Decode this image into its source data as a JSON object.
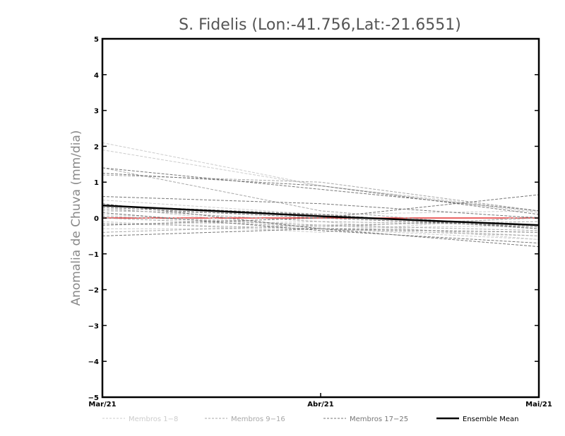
{
  "chart_data": {
    "type": "line",
    "title": "S. Fidelis (Lon:-41.756,Lat:-21.6551)",
    "ylabel": "Anomalia de Chuva (mm/dia)",
    "xlabel": "",
    "categories": [
      "Mar/21",
      "Abr/21",
      "Mai/21"
    ],
    "ylim": [
      -5,
      5
    ],
    "yticks": [
      -5,
      -4,
      -3,
      -2,
      -1,
      0,
      1,
      2,
      3,
      4,
      5
    ],
    "grid": false,
    "legend_position": "bottom",
    "groups": [
      {
        "name": "Membros 1-8",
        "color": "#cccccc",
        "dashed": true,
        "width": 1
      },
      {
        "name": "Membros 9-16",
        "color": "#a8a8a8",
        "dashed": true,
        "width": 1
      },
      {
        "name": "Membros 17-25",
        "color": "#777777",
        "dashed": true,
        "width": 1
      },
      {
        "name": "Ensemble Mean",
        "color": "#000000",
        "dashed": false,
        "width": 2.5
      }
    ],
    "zero_line_color": "#e03030",
    "series": [
      {
        "group": 0,
        "values": [
          2.1,
          0.9,
          0.2
        ]
      },
      {
        "group": 0,
        "values": [
          1.9,
          0.9,
          0.15
        ]
      },
      {
        "group": 0,
        "values": [
          0.3,
          -0.3,
          -0.6
        ]
      },
      {
        "group": 0,
        "values": [
          0.1,
          -0.2,
          -0.5
        ]
      },
      {
        "group": 0,
        "values": [
          -0.1,
          -0.4,
          0.05
        ]
      },
      {
        "group": 0,
        "values": [
          -0.3,
          -0.3,
          -0.2
        ]
      },
      {
        "group": 0,
        "values": [
          0.5,
          0.1,
          0.2
        ]
      },
      {
        "group": 0,
        "values": [
          -0.2,
          -0.1,
          -0.6
        ]
      },
      {
        "group": 1,
        "values": [
          1.4,
          0.2,
          -0.3
        ]
      },
      {
        "group": 1,
        "values": [
          1.2,
          1.0,
          0.2
        ]
      },
      {
        "group": 1,
        "values": [
          0.2,
          0.1,
          -0.3
        ]
      },
      {
        "group": 1,
        "values": [
          0.05,
          -0.2,
          -0.35
        ]
      },
      {
        "group": 1,
        "values": [
          -0.15,
          -0.3,
          -0.5
        ]
      },
      {
        "group": 1,
        "values": [
          -0.4,
          -0.2,
          -0.1
        ]
      },
      {
        "group": 1,
        "values": [
          0.25,
          -0.1,
          -0.2
        ]
      },
      {
        "group": 1,
        "values": [
          0.0,
          -0.25,
          0.0
        ]
      },
      {
        "group": 2,
        "values": [
          1.4,
          0.8,
          0.2
        ]
      },
      {
        "group": 2,
        "values": [
          1.25,
          0.9,
          0.1
        ]
      },
      {
        "group": 2,
        "values": [
          0.6,
          0.4,
          0.0
        ]
      },
      {
        "group": 2,
        "values": [
          0.3,
          0.0,
          0.65
        ]
      },
      {
        "group": 2,
        "values": [
          0.4,
          -0.3,
          -0.8
        ]
      },
      {
        "group": 2,
        "values": [
          0.15,
          -0.35,
          -0.7
        ]
      },
      {
        "group": 2,
        "values": [
          -0.2,
          0.0,
          -0.25
        ]
      },
      {
        "group": 2,
        "values": [
          -0.5,
          -0.3,
          -0.4
        ]
      },
      {
        "group": 2,
        "values": [
          0.35,
          0.1,
          -0.3
        ]
      },
      {
        "group": 3,
        "values": [
          0.35,
          0.05,
          -0.2
        ]
      }
    ]
  }
}
